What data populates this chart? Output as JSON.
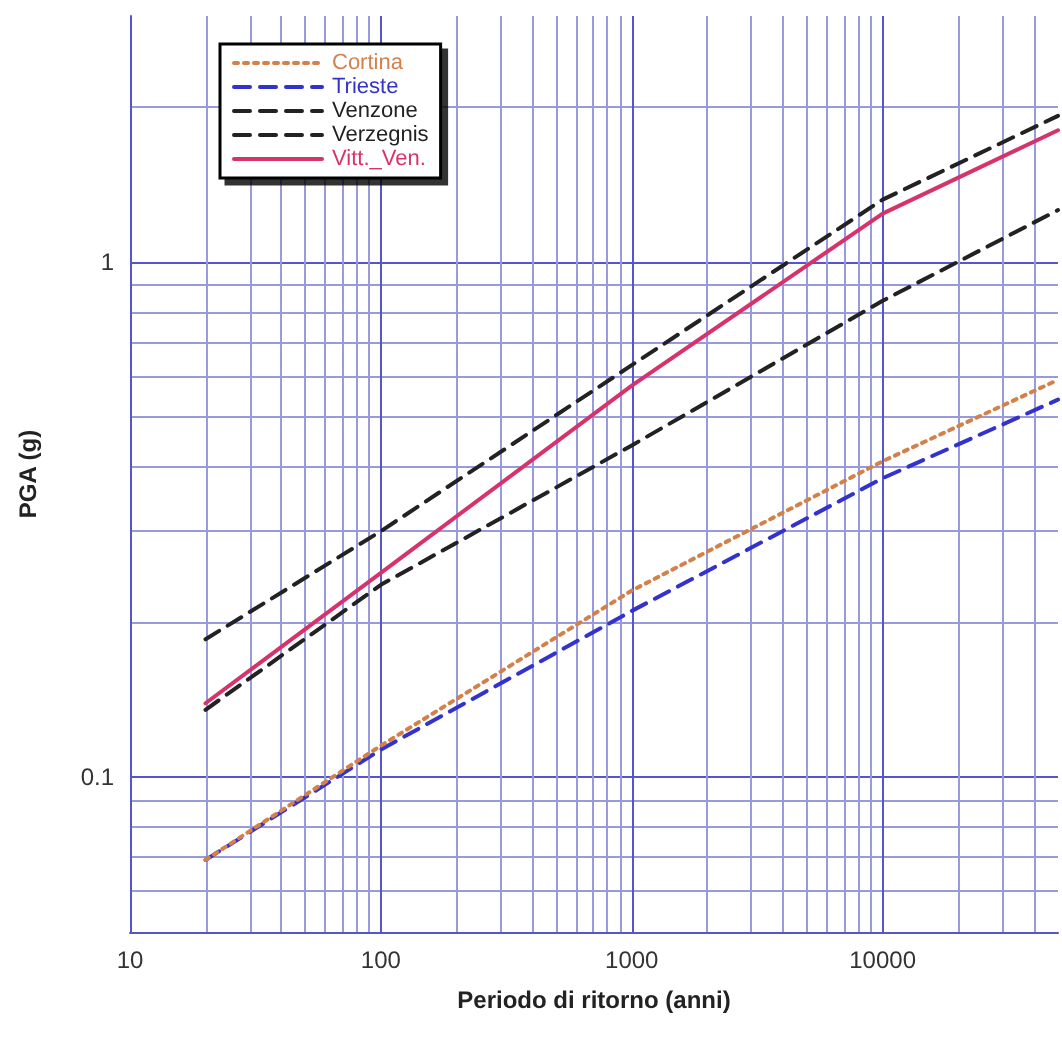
{
  "chart_data": {
    "type": "line",
    "xlabel": "Periodo di ritorno (anni)",
    "ylabel": "PGA (g)",
    "log": "xy",
    "grid": true,
    "legend": "top left",
    "xlim": [
      10,
      50000
    ],
    "xticks": [
      10,
      {
        "value": 20,
        "label": null
      },
      {
        "value": 30,
        "label": null
      },
      {
        "value": 40,
        "label": null
      },
      {
        "value": 50,
        "label": null
      },
      {
        "value": 60,
        "label": null
      },
      {
        "value": 70,
        "label": null
      },
      {
        "value": 80,
        "label": null
      },
      {
        "value": 90,
        "label": null
      },
      100,
      {
        "value": 200,
        "label": null
      },
      {
        "value": 300,
        "label": null
      },
      {
        "value": 400,
        "label": null
      },
      {
        "value": 500,
        "label": null
      },
      {
        "value": 600,
        "label": null
      },
      {
        "value": 700,
        "label": null
      },
      {
        "value": 800,
        "label": null
      },
      {
        "value": 900,
        "label": null
      },
      1000,
      {
        "value": 2000,
        "label": null
      },
      {
        "value": 3000,
        "label": null
      },
      {
        "value": 4000,
        "label": null
      },
      {
        "value": 5000,
        "label": null
      },
      {
        "value": 6000,
        "label": null
      },
      {
        "value": 7000,
        "label": null
      },
      {
        "value": 8000,
        "label": null
      },
      {
        "value": 9000,
        "label": null
      },
      10000,
      {
        "value": 20000,
        "label": null
      },
      {
        "value": 30000,
        "label": null
      },
      {
        "value": 40000,
        "label": null
      }
    ],
    "ylim": [
      0.05,
      3
    ],
    "yticks": [
      {
        "value": 0.06,
        "label": null
      },
      {
        "value": 0.07,
        "label": null
      },
      {
        "value": 0.08,
        "label": null
      },
      {
        "value": 0.09,
        "label": null
      },
      0.1,
      {
        "value": 0.2,
        "label": null
      },
      {
        "value": 0.3,
        "label": null
      },
      {
        "value": 0.4,
        "label": null
      },
      {
        "value": 0.5,
        "label": null
      },
      {
        "value": 0.6,
        "label": null
      },
      {
        "value": 0.7,
        "label": null
      },
      {
        "value": 0.8,
        "label": null
      },
      {
        "value": 0.9,
        "label": null
      },
      1,
      {
        "value": 2,
        "label": null
      }
    ],
    "x": [
      20,
      100,
      1000,
      10000,
      50000
    ],
    "series": [
      {
        "name": "Cortina",
        "color": "#d4804a",
        "line_style": "dotted",
        "values": [
          0.069,
          0.115,
          0.23,
          0.41,
          0.59
        ]
      },
      {
        "name": "Trieste",
        "color": "#3333cc",
        "line_style": "dashed",
        "values": [
          0.069,
          0.113,
          0.21,
          0.38,
          0.54
        ]
      },
      {
        "name": "Venzone",
        "color": "#222222",
        "line_style": "dashed",
        "values": [
          0.185,
          0.3,
          0.63,
          1.32,
          1.92
        ]
      },
      {
        "name": "Verzegnis",
        "color": "#222222",
        "line_style": "dashed",
        "values": [
          0.135,
          0.236,
          0.44,
          0.84,
          1.26
        ]
      },
      {
        "name": "Vitt._Ven.",
        "color": "#d6336c",
        "line_style": "solid",
        "values": [
          0.139,
          0.249,
          0.575,
          1.24,
          1.8
        ]
      }
    ]
  }
}
